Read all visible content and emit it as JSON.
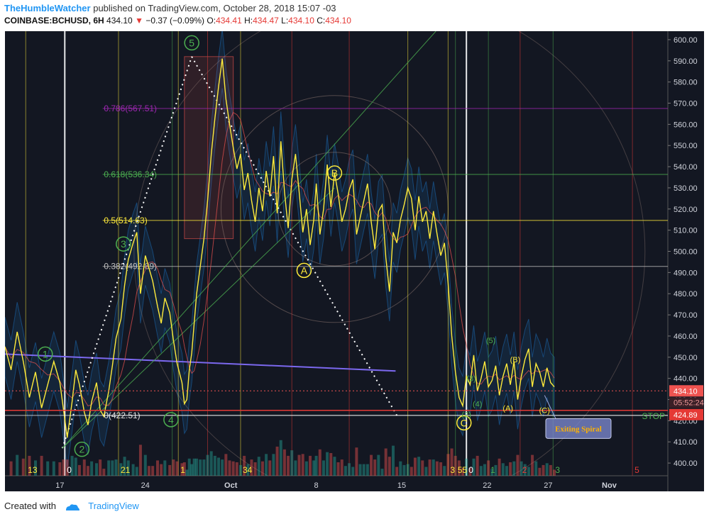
{
  "header": {
    "author": "TheHumbleWatcher",
    "published": "published on TradingView.com, October 28, 2018 15:07 -03",
    "symbol": "COINBASE:BCHUSD, 6H",
    "last": "434.10",
    "change": "−0.37 (−0.09%)",
    "o_label": "O:",
    "o": "434.41",
    "h_label": "H:",
    "h": "434.47",
    "l_label": "L:",
    "l": "434.10",
    "c_label": "C:",
    "c": "434.10"
  },
  "footer": {
    "created_with": "Created with",
    "brand": "TradingView"
  },
  "colors": {
    "background": "#131722",
    "up": "#26a69a",
    "down": "#ef5350",
    "price_line": "#ffeb3b",
    "wave_label": "#4caf50",
    "fib_786": "#9c27b0",
    "fib_618": "#4caf50",
    "fib_5": "#ffeb3b",
    "trend_line": "#7b68ee",
    "stop": "#e53935",
    "current_price_tag": "#ef5350"
  },
  "chart_data": {
    "type": "line",
    "ylim": [
      394,
      604
    ],
    "y_ticks": [
      400,
      410,
      420,
      430,
      440,
      450,
      460,
      470,
      480,
      490,
      500,
      510,
      520,
      530,
      540,
      550,
      560,
      570,
      580,
      590,
      600
    ],
    "x_ticks": [
      {
        "label": "17",
        "day": 17
      },
      {
        "label": "24",
        "day": 24
      },
      {
        "label": "Oct",
        "day": 31
      },
      {
        "label": "8",
        "day": 38
      },
      {
        "label": "15",
        "day": 45
      },
      {
        "label": "22",
        "day": 52
      },
      {
        "label": "27",
        "day": 57
      },
      {
        "label": "Nov",
        "day": 62
      }
    ],
    "xlim": [
      12.5,
      66.8
    ],
    "price": {
      "day": [
        12.5,
        13,
        13.5,
        14,
        14.5,
        15,
        15.5,
        16,
        16.5,
        17,
        17.3,
        17.6,
        18,
        18.3,
        18.6,
        19,
        19.3,
        19.6,
        20,
        20.3,
        20.6,
        21,
        21.3,
        21.6,
        22,
        22.3,
        22.6,
        23,
        23.3,
        23.6,
        24,
        24.3,
        24.6,
        25,
        25.3,
        25.6,
        26,
        26.3,
        26.6,
        27,
        27.2,
        27.4,
        27.6,
        27.8,
        28,
        28.2,
        28.5,
        28.8,
        29.1,
        29.4,
        29.7,
        30,
        30.3,
        30.6,
        30.9,
        31.2,
        31.5,
        31.8,
        32.1,
        32.4,
        32.7,
        33,
        33.3,
        33.6,
        33.9,
        34.2,
        34.5,
        34.8,
        35.1,
        35.4,
        35.7,
        36,
        36.3,
        36.6,
        36.9,
        37.2,
        37.5,
        37.8,
        38,
        38.3,
        38.6,
        38.9,
        39.2,
        39.5,
        39.8,
        40.1,
        40.4,
        40.7,
        41,
        41.3,
        41.6,
        41.9,
        42.2,
        42.5,
        42.8,
        43.1,
        43.4,
        43.7,
        44,
        44.3,
        44.6,
        44.9,
        45.2,
        45.5,
        45.8,
        46.1,
        46.4,
        46.7,
        47,
        47.3,
        47.6,
        47.9,
        48.2,
        48.5,
        48.8,
        49.1,
        49.4,
        49.7,
        50,
        50.3,
        50.6,
        50.9,
        51.2,
        51.5,
        51.8,
        52.1,
        52.4,
        52.7,
        53,
        53.3,
        53.6,
        53.9,
        54.2,
        54.5,
        54.8,
        55.1,
        55.4,
        55.7,
        56,
        56.3,
        56.6,
        56.9,
        57.2,
        57.5
      ],
      "close": [
        455,
        444,
        462,
        448,
        431,
        443,
        426,
        437,
        448,
        438,
        425,
        412,
        429,
        444,
        437,
        424,
        418,
        429,
        438,
        425,
        422,
        434,
        446,
        459,
        468,
        484,
        496,
        504,
        509,
        480,
        498,
        492,
        486,
        474,
        466,
        478,
        471,
        458,
        447,
        438,
        428,
        430,
        444,
        452,
        466,
        480,
        493,
        506,
        524,
        546,
        563,
        578,
        591,
        572,
        560,
        549,
        539,
        546,
        529,
        537,
        524,
        514,
        530,
        519,
        538,
        526,
        545,
        518,
        552,
        528,
        511,
        534,
        546,
        528,
        509,
        520,
        503,
        515,
        532,
        508,
        520,
        541,
        521,
        537,
        527,
        514,
        520,
        529,
        534,
        508,
        516,
        524,
        532,
        514,
        501,
        519,
        522,
        497,
        481,
        509,
        504,
        515,
        522,
        530,
        525,
        510,
        526,
        514,
        519,
        506,
        519,
        508,
        498,
        504,
        485,
        460,
        443,
        431,
        427,
        441,
        437,
        451,
        434,
        440,
        448,
        436,
        439,
        446,
        432,
        441,
        447,
        437,
        448,
        430,
        441,
        449,
        454,
        436,
        447,
        443,
        436,
        445,
        438,
        436,
        441,
        437,
        434.1
      ]
    },
    "levels": [
      {
        "name": "0.786",
        "label": "0.786(567.51)",
        "value": 567.51
      },
      {
        "name": "0.618",
        "label": "0.618(536.34)",
        "value": 536.34
      },
      {
        "name": "0.5",
        "label": "0.5(514.63)",
        "value": 514.63
      },
      {
        "name": "0.382",
        "label": "0.382(492.89)",
        "value": 492.89
      },
      {
        "name": "0",
        "label": "0(422.51)",
        "value": 422.51
      }
    ],
    "waves": [
      {
        "label": "1",
        "day": 15.8,
        "value": 451.5
      },
      {
        "label": "2",
        "day": 18.8,
        "value": 406.5
      },
      {
        "label": "3",
        "day": 22.2,
        "value": 503.5
      },
      {
        "label": "4",
        "day": 26.1,
        "value": 420.5
      },
      {
        "label": "5",
        "day": 27.8,
        "value": 598.5
      },
      {
        "label": "A",
        "day": 37.0,
        "value": 491
      },
      {
        "label": "B",
        "day": 39.5,
        "value": 537
      },
      {
        "label": "C",
        "day": 50.1,
        "value": 419
      }
    ],
    "sub_waves": [
      {
        "label": "(3)",
        "day": 50.7,
        "value": 440
      },
      {
        "label": "(5)",
        "day": 52.3,
        "value": 458
      },
      {
        "label": "(4)",
        "day": 51.2,
        "value": 428
      },
      {
        "label": "(2)",
        "day": 50.3,
        "value": 423
      },
      {
        "label": "(B)",
        "day": 54.3,
        "value": 449
      },
      {
        "label": "(A)",
        "day": 53.7,
        "value": 426
      },
      {
        "label": "(C)",
        "day": 56.7,
        "value": 425
      }
    ],
    "time_counts": [
      {
        "label": "13",
        "day": 14.2,
        "color": "#ffeb3b"
      },
      {
        "label": "0",
        "day": 17.4,
        "color": "#ffffff"
      },
      {
        "label": "21",
        "day": 21.8,
        "color": "#ffeb3b"
      },
      {
        "label": "1",
        "day": 26.7,
        "color": "#ffeb3b"
      },
      {
        "label": "34",
        "day": 31.8,
        "color": "#ffeb3b"
      },
      {
        "label": "3",
        "day": 48.8,
        "color": "#ffeb3b"
      },
      {
        "label": "55",
        "day": 49.4,
        "color": "#ffeb3b"
      },
      {
        "label": "0",
        "day": 50.3,
        "color": "#ffffff"
      },
      {
        "label": "1",
        "day": 52.1,
        "color": "#4caf50"
      },
      {
        "label": "2",
        "day": 54.7,
        "color": "#e53935"
      },
      {
        "label": "3",
        "day": 57.4,
        "color": "#4caf50"
      },
      {
        "label": "5",
        "day": 63.9,
        "color": "#e53935"
      }
    ],
    "stop": {
      "label": "STOP",
      "value": 424.89,
      "tag": "424.89"
    },
    "current": {
      "value": 434.1,
      "tag": "434.10",
      "countdown": "05:52:24"
    },
    "annotation": "Exiting Spiral",
    "trend_line": {
      "from": {
        "day": 12.5,
        "value": 451.5
      },
      "to": {
        "day": 44.5,
        "value": 443.5
      }
    },
    "dotted_lines": [
      {
        "from": {
          "day": 17.2,
          "value": 407
        },
        "to": {
          "day": 27.8,
          "value": 592
        }
      },
      {
        "from": {
          "day": 27.8,
          "value": 592
        },
        "to": {
          "day": 44.6,
          "value": 422.5
        }
      }
    ]
  }
}
